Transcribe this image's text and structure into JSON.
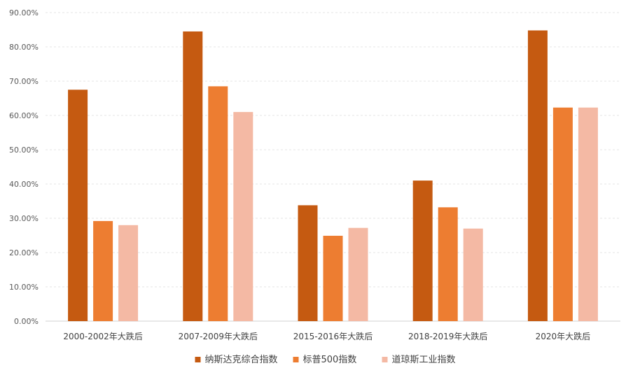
{
  "chart_data": {
    "type": "bar",
    "title": "",
    "xlabel": "",
    "ylabel": "",
    "ylim": [
      0,
      90
    ],
    "y_ticks": [
      0,
      10,
      20,
      30,
      40,
      50,
      60,
      70,
      80,
      90
    ],
    "y_tick_labels": [
      "0.00%",
      "10.00%",
      "20.00%",
      "30.00%",
      "40.00%",
      "50.00%",
      "60.00%",
      "70.00%",
      "80.00%",
      "90.00%"
    ],
    "grid": true,
    "legend_position": "bottom",
    "categories": [
      "2000-2002年大跌后",
      "2007-2009年大跌后",
      "2015-2016年大跌后",
      "2018-2019年大跌后",
      "2020年大跌后"
    ],
    "series": [
      {
        "name": "纳斯达克综合指数",
        "color": "#C55A11",
        "values": [
          67.5,
          84.5,
          33.8,
          41.0,
          84.8
        ]
      },
      {
        "name": "标普500指数",
        "color": "#ED7D31",
        "values": [
          29.2,
          68.5,
          24.9,
          33.2,
          62.3
        ]
      },
      {
        "name": "道琼斯工业指数",
        "color": "#F4B9A4",
        "values": [
          28.0,
          61.0,
          27.2,
          27.0,
          62.3
        ]
      }
    ]
  }
}
